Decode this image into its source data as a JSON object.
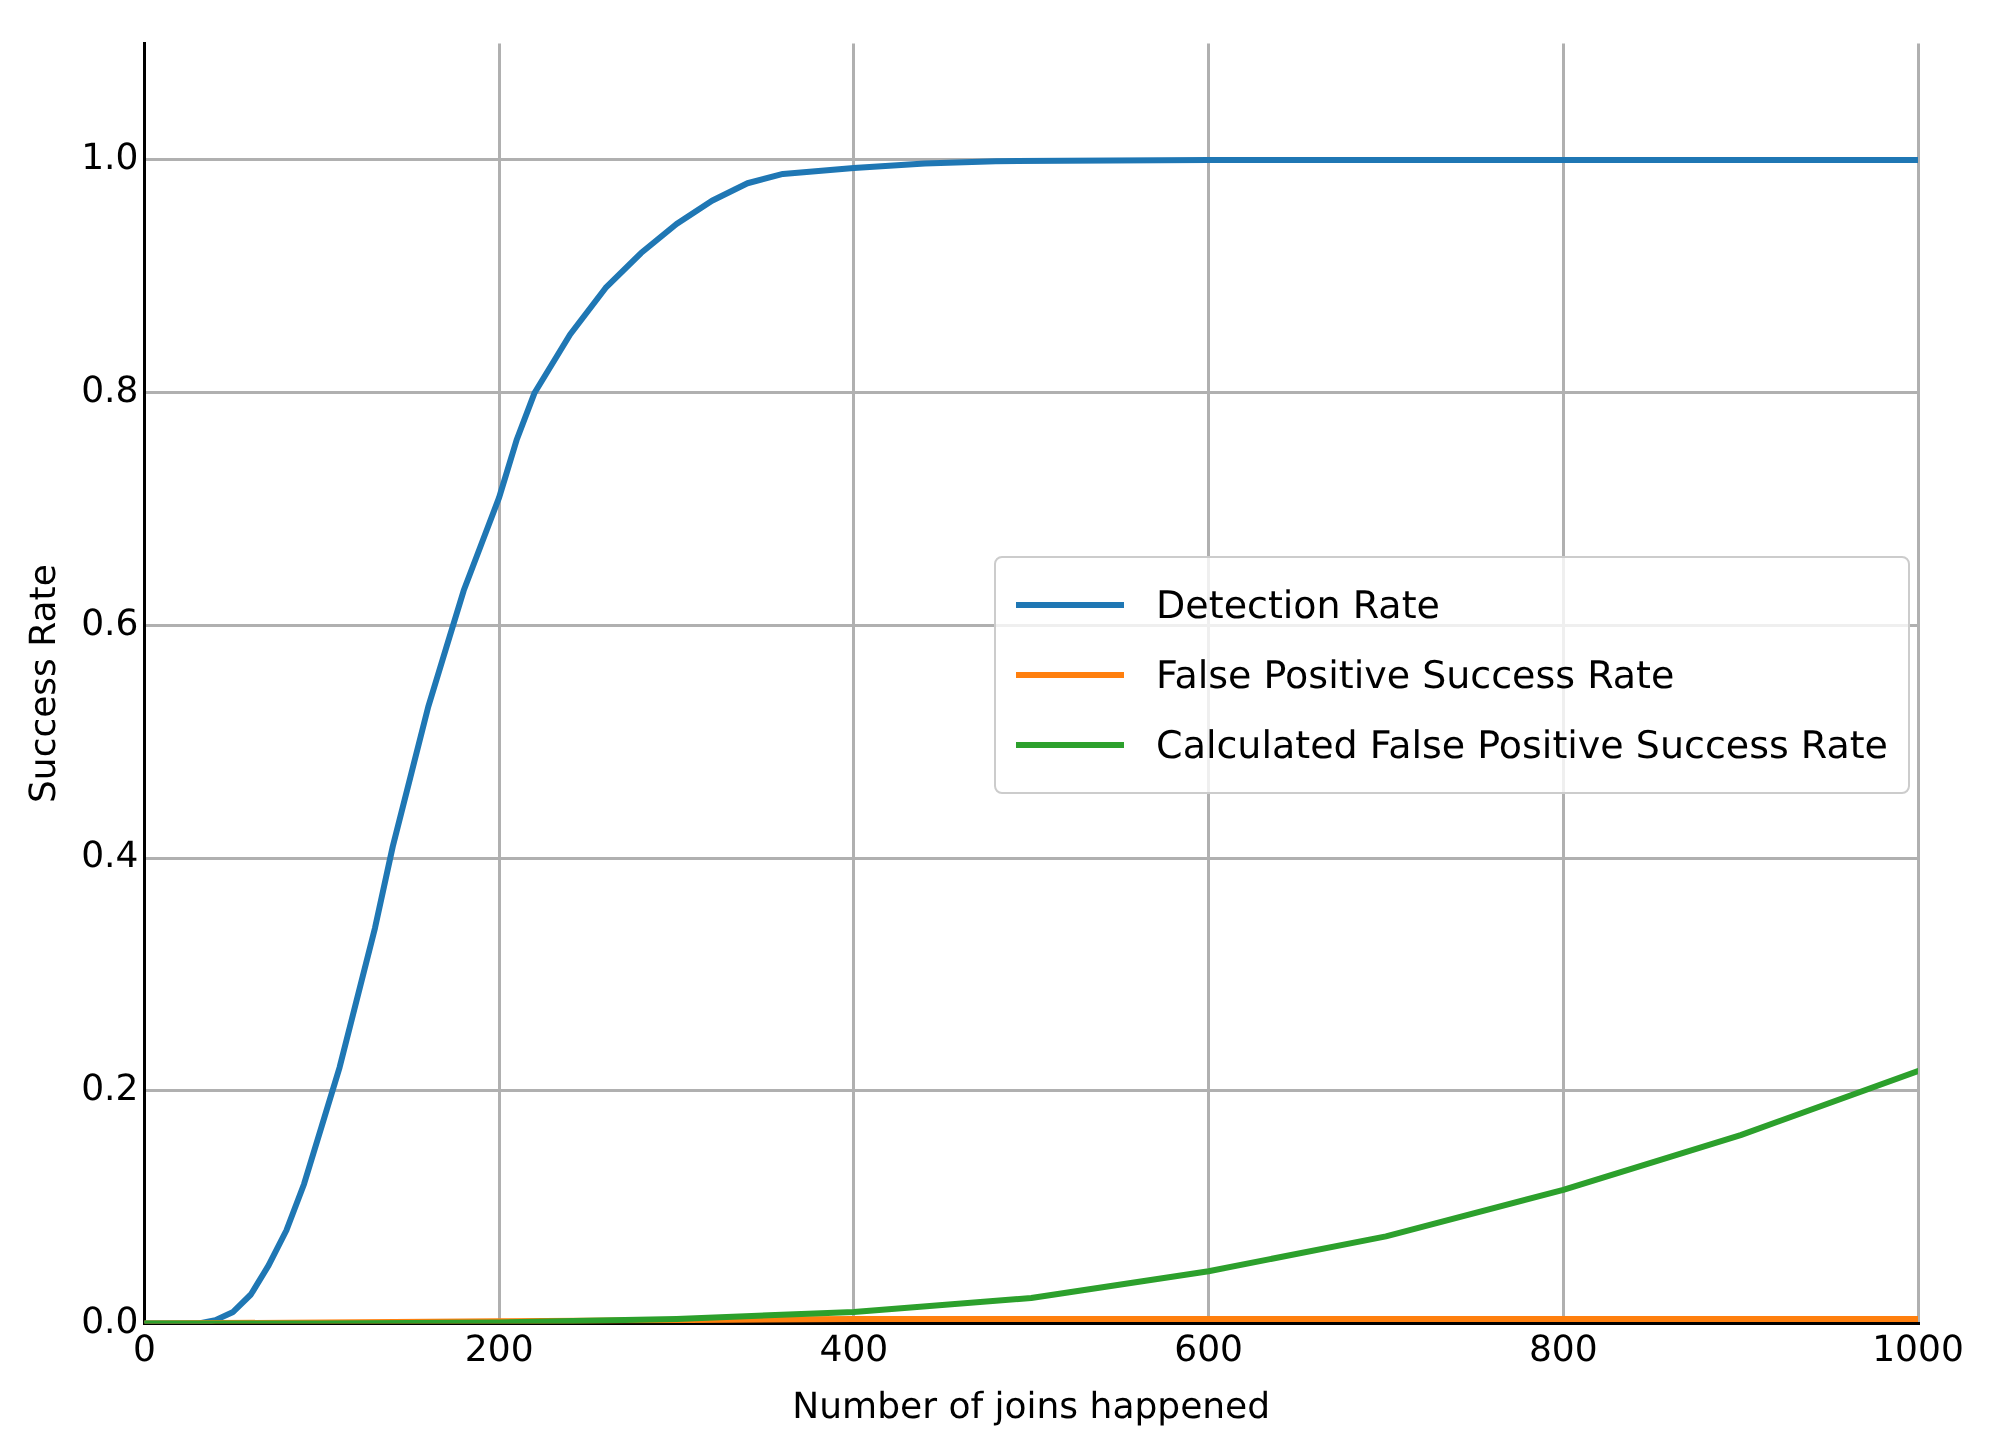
{
  "chart_data": {
    "type": "line",
    "xlabel": "Number of joins happened",
    "ylabel": "Success Rate",
    "xlim": [
      0,
      1000
    ],
    "ylim": [
      0,
      1.1
    ],
    "xticks": [
      0,
      200,
      400,
      600,
      800,
      1000
    ],
    "yticks": [
      {
        "value": 0,
        "label": "0.0"
      },
      {
        "value": 0.2,
        "label": "0.2"
      },
      {
        "value": 0.4,
        "label": "0.4"
      },
      {
        "value": 0.6,
        "label": "0.6"
      },
      {
        "value": 0.8,
        "label": "0.8"
      },
      {
        "value": 1,
        "label": "1.0"
      }
    ],
    "grid": true,
    "legend": "right",
    "line_style": "solid",
    "marker": "none",
    "series": [
      {
        "name": "Detection Rate",
        "color": "#1f77b4",
        "x": [
          0,
          30,
          40,
          50,
          60,
          70,
          80,
          90,
          100,
          110,
          120,
          130,
          140,
          150,
          160,
          170,
          180,
          190,
          200,
          210,
          220,
          240,
          260,
          280,
          300,
          320,
          340,
          360,
          400,
          440,
          480,
          600,
          1000
        ],
        "values": [
          0,
          0,
          0.003,
          0.01,
          0.025,
          0.05,
          0.08,
          0.12,
          0.17,
          0.22,
          0.28,
          0.34,
          0.41,
          0.47,
          0.53,
          0.58,
          0.63,
          0.67,
          0.71,
          0.76,
          0.8,
          0.85,
          0.89,
          0.92,
          0.945,
          0.965,
          0.98,
          0.988,
          0.993,
          0.997,
          0.999,
          1,
          1
        ]
      },
      {
        "name": "False Positive Success Rate",
        "color": "#ff7f0e",
        "x": [
          0,
          200,
          400,
          1000
        ],
        "values": [
          0,
          0.002,
          0.004,
          0.004
        ]
      },
      {
        "name": "Calculated False Positive Success Rate",
        "color": "#2ca02c",
        "x": [
          0,
          100,
          200,
          300,
          400,
          500,
          600,
          700,
          800,
          900,
          1000
        ],
        "values": [
          0,
          0,
          0.001,
          0.004,
          0.01,
          0.022,
          0.045,
          0.075,
          0.115,
          0.162,
          0.217
        ]
      }
    ]
  }
}
